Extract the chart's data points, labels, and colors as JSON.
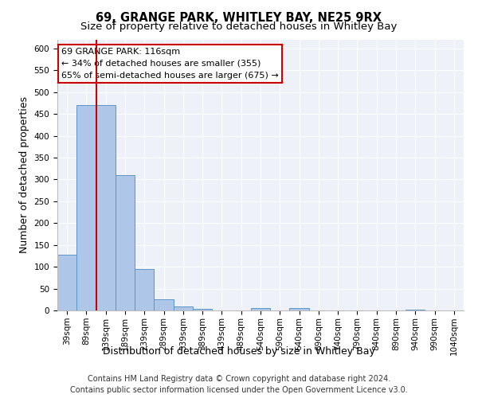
{
  "title": "69, GRANGE PARK, WHITLEY BAY, NE25 9RX",
  "subtitle": "Size of property relative to detached houses in Whitley Bay",
  "xlabel": "Distribution of detached houses by size in Whitley Bay",
  "ylabel": "Number of detached properties",
  "footer_line1": "Contains HM Land Registry data © Crown copyright and database right 2024.",
  "footer_line2": "Contains public sector information licensed under the Open Government Licence v3.0.",
  "bar_labels": [
    "39sqm",
    "89sqm",
    "139sqm",
    "189sqm",
    "239sqm",
    "289sqm",
    "339sqm",
    "389sqm",
    "439sqm",
    "489sqm",
    "540sqm",
    "590sqm",
    "640sqm",
    "690sqm",
    "740sqm",
    "790sqm",
    "840sqm",
    "890sqm",
    "940sqm",
    "990sqm",
    "1040sqm"
  ],
  "bar_values": [
    128,
    470,
    470,
    310,
    95,
    25,
    10,
    3,
    0,
    0,
    5,
    0,
    5,
    0,
    0,
    0,
    0,
    0,
    2,
    0,
    0
  ],
  "bar_color": "#aec6e8",
  "bar_edge_color": "#5a96c8",
  "ylim": [
    0,
    620
  ],
  "yticks": [
    0,
    50,
    100,
    150,
    200,
    250,
    300,
    350,
    400,
    450,
    500,
    550,
    600
  ],
  "vline_x": 1.5,
  "vline_color": "#cc0000",
  "annotation_text": "69 GRANGE PARK: 116sqm\n← 34% of detached houses are smaller (355)\n65% of semi-detached houses are larger (675) →",
  "annotation_box_color": "#ffffff",
  "annotation_box_edge_color": "#cc0000",
  "title_fontsize": 10.5,
  "subtitle_fontsize": 9.5,
  "axis_label_fontsize": 9,
  "tick_fontsize": 7.5,
  "annotation_fontsize": 8,
  "footer_fontsize": 7,
  "background_color": "#eef2f8"
}
